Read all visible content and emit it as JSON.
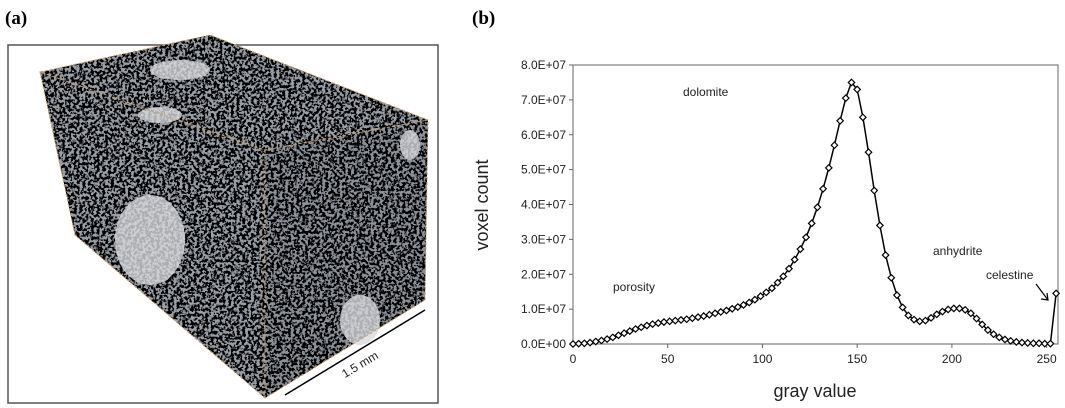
{
  "panels": [
    "(a)",
    "(b)"
  ],
  "scale_bar": "1.5 mm",
  "chart_data": {
    "type": "line",
    "xlabel": "gray value",
    "ylabel": "voxel count",
    "x": [
      0,
      3,
      6,
      9,
      12,
      15,
      18,
      21,
      24,
      27,
      30,
      33,
      36,
      39,
      42,
      45,
      48,
      51,
      54,
      57,
      60,
      63,
      66,
      69,
      72,
      75,
      78,
      81,
      84,
      87,
      90,
      93,
      96,
      99,
      102,
      105,
      108,
      111,
      114,
      117,
      120,
      123,
      126,
      129,
      132,
      135,
      138,
      141,
      144,
      147,
      150,
      153,
      156,
      159,
      162,
      165,
      168,
      171,
      174,
      177,
      180,
      183,
      186,
      189,
      192,
      195,
      198,
      201,
      204,
      207,
      210,
      213,
      216,
      219,
      222,
      225,
      228,
      231,
      234,
      237,
      240,
      243,
      246,
      249,
      252,
      255
    ],
    "values": [
      0,
      100000,
      200000,
      400000,
      700000,
      1000000,
      1400000,
      1900000,
      2500000,
      3100000,
      3700000,
      4300000,
      4800000,
      5300000,
      5700000,
      6000000,
      6300000,
      6500000,
      6700000,
      6900000,
      7100000,
      7400000,
      7700000,
      8000000,
      8400000,
      8800000,
      9200000,
      9600000,
      10100000,
      10600000,
      11200000,
      11900000,
      12700000,
      13700000,
      14800000,
      16000000,
      17600000,
      19400000,
      21600000,
      24200000,
      27200000,
      30600000,
      34600000,
      39200000,
      44500000,
      50500000,
      57000000,
      64000000,
      70500000,
      75000000,
      73000000,
      65000000,
      55000000,
      44000000,
      34000000,
      25500000,
      19000000,
      14000000,
      10500000,
      8200000,
      7000000,
      6500000,
      6700000,
      7500000,
      8500000,
      9300000,
      9900000,
      10200000,
      10200000,
      9800000,
      8800000,
      7300000,
      5600000,
      4000000,
      2800000,
      1900000,
      1300000,
      900000,
      600000,
      400000,
      300000,
      200000,
      200000,
      100000,
      100000,
      14500000
    ],
    "color": "#000000",
    "xlim": [
      0,
      256
    ],
    "xticks": [
      0,
      50,
      100,
      150,
      200,
      250
    ],
    "ylim": [
      0,
      80000000
    ],
    "yticks": [
      {
        "value": 0,
        "label": "0.0E+00"
      },
      {
        "value": 10000000,
        "label": "1.0E+07"
      },
      {
        "value": 20000000,
        "label": "2.0E+07"
      },
      {
        "value": 30000000,
        "label": "3.0E+07"
      },
      {
        "value": 40000000,
        "label": "4.0E+07"
      },
      {
        "value": 50000000,
        "label": "5.0E+07"
      },
      {
        "value": 60000000,
        "label": "6.0E+07"
      },
      {
        "value": 70000000,
        "label": "7.0E+07"
      },
      {
        "value": 80000000,
        "label": "8.0E+07"
      }
    ],
    "annotations": [
      "dolomite",
      "porosity",
      "anhydrite",
      "celestine"
    ]
  }
}
